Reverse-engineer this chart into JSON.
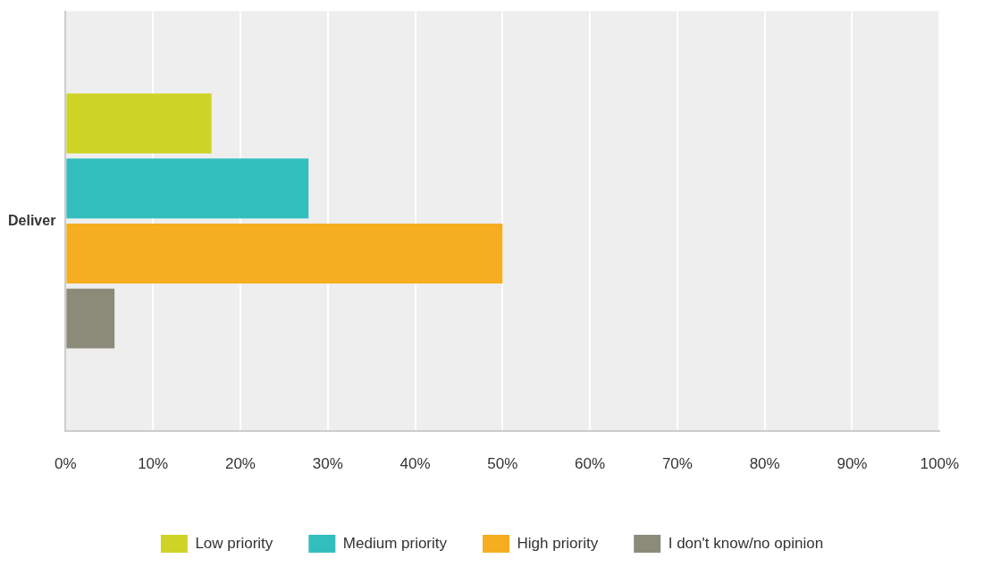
{
  "chart_data": {
    "type": "bar",
    "orientation": "horizontal",
    "categories": [
      "Deliver"
    ],
    "series": [
      {
        "name": "Low priority",
        "color": "#cdd425",
        "values": [
          16.7
        ]
      },
      {
        "name": "Medium priority",
        "color": "#33bebe",
        "values": [
          27.8
        ]
      },
      {
        "name": "High priority",
        "color": "#f5ae1f",
        "values": [
          50
        ]
      },
      {
        "name": "I don't know/no opinion",
        "color": "#8b8b79",
        "values": [
          5.6
        ]
      }
    ],
    "xlim": [
      0,
      100
    ],
    "xticks": [
      {
        "value": 0,
        "label": "0%"
      },
      {
        "value": 10,
        "label": "10%"
      },
      {
        "value": 20,
        "label": "20%"
      },
      {
        "value": 30,
        "label": "30%"
      },
      {
        "value": 40,
        "label": "40%"
      },
      {
        "value": 50,
        "label": "50%"
      },
      {
        "value": 60,
        "label": "60%"
      },
      {
        "value": 70,
        "label": "70%"
      },
      {
        "value": 80,
        "label": "80%"
      },
      {
        "value": 90,
        "label": "90%"
      },
      {
        "value": 100,
        "label": "100%"
      }
    ],
    "grid": "x",
    "legend": "bottom"
  }
}
